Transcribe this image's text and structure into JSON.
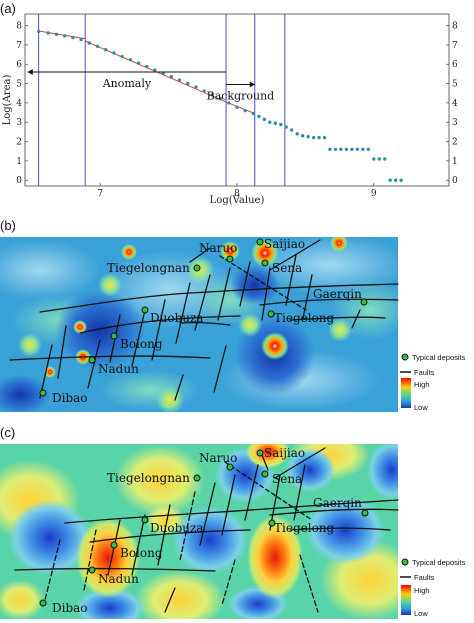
{
  "panel_labels": {
    "a": "(a)",
    "b": "(b)",
    "c": "(c)"
  },
  "chart_data": {
    "type": "scatter",
    "xlabel": "Log(Value)",
    "ylabel": "Log(Area)",
    "xlim": [
      6.45,
      9.55
    ],
    "ylim": [
      -0.3,
      8.6
    ],
    "x_ticks": [
      7,
      8,
      9
    ],
    "y_ticks": [
      0,
      1,
      2,
      3,
      4,
      5,
      6,
      7,
      8
    ],
    "x_tick_labels": [
      "7",
      "8",
      "9"
    ],
    "y_tick_labels": [
      "0",
      "1",
      "2",
      "3",
      "4",
      "5",
      "6",
      "7",
      "8"
    ],
    "breakpoints": [
      6.55,
      6.89,
      7.92,
      8.13,
      8.35
    ],
    "annotations": [
      {
        "text": "Anomaly",
        "from": 7.92,
        "to": 6.47,
        "y": 5.6
      },
      {
        "text": "Background",
        "from": 7.92,
        "to": 8.13,
        "y": 4.95
      }
    ],
    "series": [
      {
        "x": [
          6.55,
          6.62,
          6.68,
          6.74,
          6.8,
          6.86,
          6.92,
          6.98,
          7.04,
          7.1,
          7.16,
          7.22,
          7.28,
          7.34,
          7.4,
          7.46,
          7.52,
          7.58,
          7.64,
          7.7,
          7.76,
          7.82,
          7.88,
          7.94,
          8.0,
          8.06,
          8.12,
          8.16,
          8.2,
          8.24,
          8.28,
          8.32,
          8.36,
          8.4,
          8.44,
          8.48,
          8.52,
          8.56,
          8.6,
          8.64,
          8.68,
          8.72,
          8.76,
          8.8,
          8.84,
          8.88,
          8.92,
          8.96,
          9.0,
          9.04,
          9.08,
          9.12,
          9.16,
          9.2
        ],
        "y": [
          7.7,
          7.62,
          7.55,
          7.47,
          7.38,
          7.28,
          7.1,
          6.93,
          6.75,
          6.58,
          6.4,
          6.23,
          6.06,
          5.88,
          5.7,
          5.53,
          5.36,
          5.18,
          5.0,
          4.82,
          4.62,
          4.42,
          4.22,
          4.0,
          3.78,
          3.6,
          3.45,
          3.3,
          3.15,
          3.0,
          2.95,
          2.88,
          2.75,
          2.6,
          2.4,
          2.3,
          2.25,
          2.2,
          2.2,
          2.2,
          1.6,
          1.6,
          1.6,
          1.6,
          1.6,
          1.6,
          1.6,
          1.6,
          1.1,
          1.1,
          1.1,
          0.0,
          0.0,
          0.0
        ]
      }
    ],
    "fit_lines": [
      {
        "x": [
          6.55,
          6.89
        ],
        "y": [
          7.72,
          7.32
        ]
      },
      {
        "x": [
          6.89,
          7.92
        ],
        "y": [
          7.2,
          4.05
        ]
      },
      {
        "x": [
          7.92,
          8.13
        ],
        "y": [
          4.05,
          3.45
        ]
      }
    ]
  },
  "maps": {
    "map_b": {
      "label": "(b)",
      "sites": [
        {
          "name": "Naruo"
        },
        {
          "name": "Saijiao"
        },
        {
          "name": "Tiegelongnan"
        },
        {
          "name": "Sena"
        },
        {
          "name": "Gaerqin"
        },
        {
          "name": "Duobuza"
        },
        {
          "name": "Tiegelong"
        },
        {
          "name": "Bolong"
        },
        {
          "name": "Nadun"
        },
        {
          "name": "Dibao"
        }
      ],
      "legend": {
        "deposits": "Typical deposits",
        "faults": "Faults",
        "high": "High",
        "low": "Low"
      }
    },
    "map_c": {
      "label": "(c)",
      "sites": [
        {
          "name": "Naruo"
        },
        {
          "name": "Saijiao"
        },
        {
          "name": "Tiegelongnan"
        },
        {
          "name": "Sena"
        },
        {
          "name": "Gaerqin"
        },
        {
          "name": "Duobuza"
        },
        {
          "name": "Tiegelong"
        },
        {
          "name": "Bolong"
        },
        {
          "name": "Nadun"
        },
        {
          "name": "Dibao"
        }
      ],
      "legend": {
        "deposits": "Typical deposits",
        "faults": "Faults",
        "high": "High",
        "low": "Low"
      }
    }
  },
  "colors": {
    "point": "#2f8fa6",
    "fit_line": "#e03a2a",
    "breakpoint_line": "#3b3bb8",
    "map_b_background": "#3aa0d8",
    "map_c_background": "#59d4a8"
  }
}
